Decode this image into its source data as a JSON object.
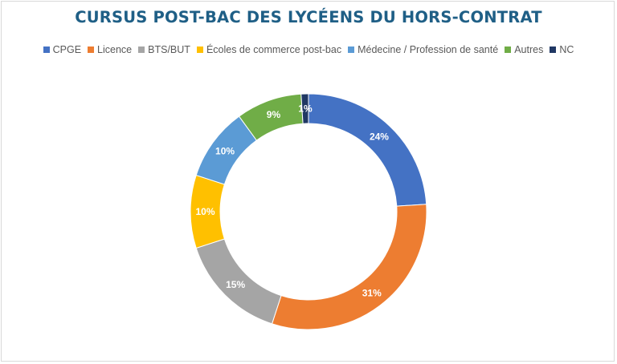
{
  "chart_data": {
    "type": "pie",
    "variant": "doughnut",
    "title": "CURSUS POST-BAC DES LYCÉENS DU HORS-CONTRAT",
    "legend_position": "top",
    "series": [
      {
        "name": "CPGE",
        "value": 24,
        "label": "24%",
        "color": "#4472c4"
      },
      {
        "name": "Licence",
        "value": 31,
        "label": "31%",
        "color": "#ed7d31"
      },
      {
        "name": "BTS/BUT",
        "value": 15,
        "label": "15%",
        "color": "#a5a5a5"
      },
      {
        "name": "Écoles de commerce post-bac",
        "value": 10,
        "label": "10%",
        "color": "#ffc000"
      },
      {
        "name": "Médecine / Profession de santé",
        "value": 10,
        "label": "10%",
        "color": "#5b9bd5"
      },
      {
        "name": "Autres",
        "value": 9,
        "label": "9%",
        "color": "#70ad47"
      },
      {
        "name": "NC",
        "value": 1,
        "label": "1%",
        "color": "#203864"
      }
    ]
  }
}
